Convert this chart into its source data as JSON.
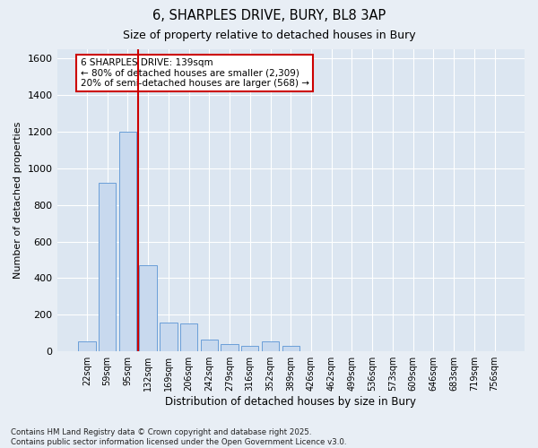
{
  "title1": "6, SHARPLES DRIVE, BURY, BL8 3AP",
  "title2": "Size of property relative to detached houses in Bury",
  "xlabel": "Distribution of detached houses by size in Bury",
  "ylabel": "Number of detached properties",
  "categories": [
    "22sqm",
    "59sqm",
    "95sqm",
    "132sqm",
    "169sqm",
    "206sqm",
    "242sqm",
    "279sqm",
    "316sqm",
    "352sqm",
    "389sqm",
    "426sqm",
    "462sqm",
    "499sqm",
    "536sqm",
    "573sqm",
    "609sqm",
    "646sqm",
    "683sqm",
    "719sqm",
    "756sqm"
  ],
  "values": [
    55,
    920,
    1200,
    470,
    160,
    155,
    65,
    40,
    30,
    55,
    30,
    0,
    0,
    0,
    0,
    0,
    0,
    0,
    0,
    0,
    0
  ],
  "bar_color": "#c8d9ee",
  "bar_edge_color": "#6a9fd8",
  "vline_x_index": 2.5,
  "vline_color": "#cc0000",
  "annotation_text": "6 SHARPLES DRIVE: 139sqm\n← 80% of detached houses are smaller (2,309)\n20% of semi-detached houses are larger (568) →",
  "annotation_box_color": "#cc0000",
  "annotation_text_color": "#000000",
  "ylim": [
    0,
    1650
  ],
  "yticks": [
    0,
    200,
    400,
    600,
    800,
    1000,
    1200,
    1400,
    1600
  ],
  "footnote": "Contains HM Land Registry data © Crown copyright and database right 2025.\nContains public sector information licensed under the Open Government Licence v3.0.",
  "plot_bg_color": "#dce6f1",
  "fig_bg_color": "#e8eef5"
}
